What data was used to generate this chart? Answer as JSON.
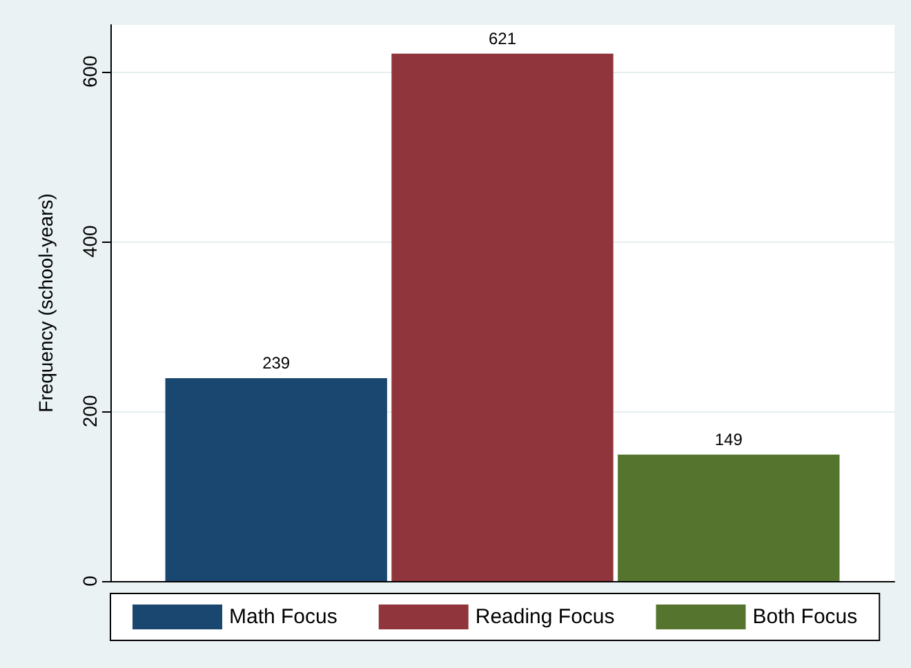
{
  "chart_data": {
    "type": "bar",
    "ylabel": "Frequency (school-years)",
    "categories": [
      null
    ],
    "series": [
      {
        "name": "Math Focus",
        "color": "#1a476f",
        "values": [
          239
        ]
      },
      {
        "name": "Reading Focus",
        "color": "#90353b",
        "values": [
          621
        ]
      },
      {
        "name": "Both Focus",
        "color": "#55752f",
        "values": [
          149
        ]
      }
    ],
    "ylim": [
      0,
      655
    ],
    "yticks": [
      0,
      200,
      400,
      600
    ],
    "grid": "y",
    "legend": "bottom",
    "data_labels": true
  }
}
